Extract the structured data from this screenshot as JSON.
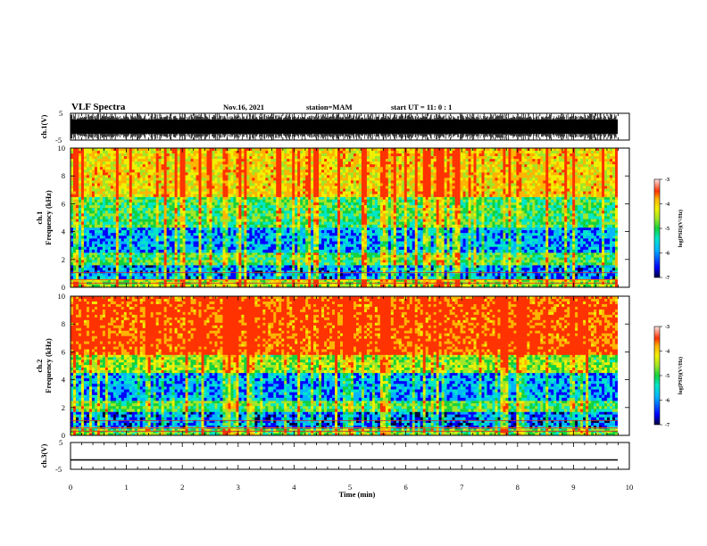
{
  "header": {
    "title": "VLF Spectra",
    "date": "Nov.16, 2021",
    "station": "station=MAM",
    "start": "start  UT =   11: 0  : 1"
  },
  "colors": {
    "spectrum_scale": [
      "#00003c",
      "#0000ff",
      "#00b4ff",
      "#00e6c8",
      "#14d23c",
      "#a0e628",
      "#f0f000",
      "#ffb400",
      "#ff3200",
      "#ffe6e6"
    ]
  },
  "chart_data": [
    {
      "type": "line",
      "name": "ch1-waveform",
      "ylabel": "ch.1(V)",
      "ylim": [
        -5,
        5
      ],
      "yticks": [
        "5",
        "-5"
      ],
      "xlim": [
        0,
        10
      ],
      "description_values": {
        "amplitude_range": [
          -5,
          5
        ],
        "baseline": 0
      }
    },
    {
      "type": "heatmap",
      "name": "ch1-spectrogram",
      "ylabel": "ch.1\nFrequency (kHz)",
      "ylim": [
        0,
        10
      ],
      "yticks": [
        "0",
        "2",
        "4",
        "6",
        "8",
        "10"
      ],
      "xlim": [
        0,
        9.83
      ],
      "colorbar": {
        "label": "log(PSD)(V²/Hz)",
        "range": [
          -7,
          -3
        ],
        "ticks": [
          "-3",
          "-4",
          "-5",
          "-6",
          "-7"
        ]
      },
      "bands": [
        {
          "freq_khz": [
            0,
            0.6
          ],
          "log_psd": -4.5
        },
        {
          "freq_khz": [
            0.6,
            1.6
          ],
          "log_psd": -6.0
        },
        {
          "freq_khz": [
            1.6,
            2.5
          ],
          "log_psd": -5.0
        },
        {
          "freq_khz": [
            2.5,
            4.3
          ],
          "log_psd": -5.9
        },
        {
          "freq_khz": [
            4.3,
            6.5
          ],
          "log_psd": -5.0
        },
        {
          "freq_khz": [
            6.5,
            10
          ],
          "log_psd": -4.0
        }
      ]
    },
    {
      "type": "heatmap",
      "name": "ch2-spectrogram",
      "ylabel": "ch.2\nFrequency (kHz)",
      "ylim": [
        0,
        10
      ],
      "yticks": [
        "0",
        "2",
        "4",
        "6",
        "8",
        "10"
      ],
      "xlim": [
        0,
        9.83
      ],
      "colorbar": {
        "label": "log(PSD)(V²/Hz)",
        "range": [
          -7,
          -3
        ],
        "ticks": [
          "-3",
          "-4",
          "-5",
          "-6",
          "-7"
        ]
      },
      "bands": [
        {
          "freq_khz": [
            0,
            0.5
          ],
          "log_psd": -4.8
        },
        {
          "freq_khz": [
            0.5,
            1.7
          ],
          "log_psd": -6.1
        },
        {
          "freq_khz": [
            1.7,
            2.5
          ],
          "log_psd": -5.0
        },
        {
          "freq_khz": [
            2.5,
            4.5
          ],
          "log_psd": -5.9
        },
        {
          "freq_khz": [
            4.5,
            5.8
          ],
          "log_psd": -4.6
        },
        {
          "freq_khz": [
            5.8,
            10
          ],
          "log_psd": -3.3
        }
      ]
    },
    {
      "type": "line",
      "name": "ch3-waveform",
      "ylabel": "ch.3(V)",
      "ylim": [
        -5,
        5
      ],
      "yticks": [
        "5",
        "-5"
      ],
      "xlim": [
        0,
        9.83
      ],
      "y": [
        -1.5,
        -1.5
      ]
    }
  ],
  "xaxis": {
    "label": "Time  (min)",
    "ticks": [
      "0",
      "1",
      "2",
      "3",
      "4",
      "5",
      "6",
      "7",
      "8",
      "9",
      "10"
    ]
  }
}
